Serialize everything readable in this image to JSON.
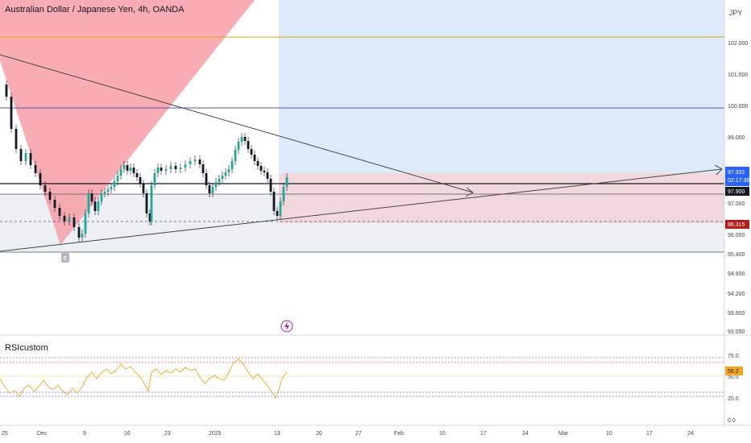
{
  "header": {
    "symbol_title": "Australian Dollar / Japanese Yen, 4h, OANDA",
    "currency_button": "JPY"
  },
  "price_axis": {
    "ticks": [
      "102.000",
      "101.000",
      "100.000",
      "99.000",
      "97.000",
      "96.000",
      "95.400",
      "94.800",
      "94.200",
      "93.600",
      "93.050"
    ],
    "badges": [
      {
        "label": "97.932",
        "sub": "02:17:38",
        "color": "#2962ff"
      },
      {
        "label": "97.900",
        "color": "#131722"
      },
      {
        "label": "96.315",
        "color": "#b71c1c"
      }
    ]
  },
  "time_axis": {
    "labels": [
      "25",
      "Dec",
      "9",
      "16",
      "23",
      "2025",
      "13",
      "20",
      "27",
      "Feb",
      "10",
      "17",
      "24",
      "Mar",
      "10",
      "17",
      "24"
    ]
  },
  "markers": {
    "event_badge": "E"
  },
  "indicator": {
    "name": "RSIcustom",
    "ticks": [
      "75.0",
      "50.0",
      "25.0",
      "0.0"
    ],
    "value_badge": "56.2"
  },
  "colors": {
    "accent": "#2962ff",
    "rsi_line": "#f5a623",
    "red_zone": "#f7a3ab",
    "blue_zone": "#ddeafb",
    "pink_zone": "#f1d8dc",
    "gray_zone": "#eceff3",
    "gold_line": "#e0a800",
    "purple_line": "#5b4fb0",
    "candle_green": "#26a69a",
    "candle_red": "#131722"
  },
  "chart_data": {
    "type": "candlestick",
    "series": [
      {
        "name": "Australian Dollar / Japanese Yen, 4h, OANDA",
        "last": 97.932
      },
      {
        "name": "RSIcustom",
        "last": 56.2,
        "levels": [
          75.0,
          50.0,
          25.0
        ]
      }
    ]
  }
}
